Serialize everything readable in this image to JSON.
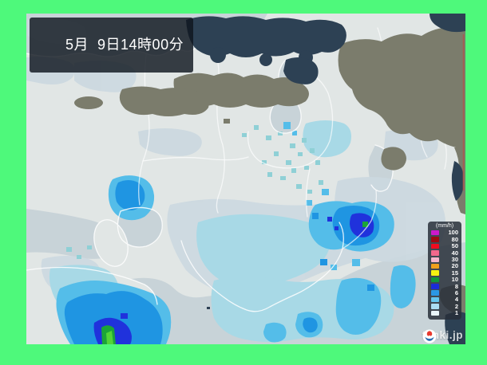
{
  "header": {
    "timestamp": "5月  9日14時00分"
  },
  "legend": {
    "title": "(mm/h)",
    "rows": [
      {
        "value": "100",
        "color": "#cc19cc"
      },
      {
        "value": "80",
        "color": "#9e0a10"
      },
      {
        "value": "50",
        "color": "#ef0c1f"
      },
      {
        "value": "40",
        "color": "#f2688c"
      },
      {
        "value": "30",
        "color": "#f6b7cd"
      },
      {
        "value": "20",
        "color": "#f0a01d"
      },
      {
        "value": "15",
        "color": "#f5f112"
      },
      {
        "value": "10",
        "color": "#12963c"
      },
      {
        "value": "8",
        "color": "#1b2cd8"
      },
      {
        "value": "6",
        "color": "#2a97e5"
      },
      {
        "value": "4",
        "color": "#64c5ee"
      },
      {
        "value": "2",
        "color": "#abdcf2"
      },
      {
        "value": "1",
        "color": "#e9f5f9"
      }
    ]
  },
  "watermark": {
    "text": "tenki.jp"
  },
  "colors": {
    "frame": "#4ef97b",
    "land": "#e1e6e5",
    "sea": "#c8d3d8",
    "cloud_light": "#7b7c6c",
    "cloud_dark": "#2d4154",
    "rain_light": "#a8d9e6",
    "rain_medium": "#54bde9",
    "rain_strong": "#1f95e2",
    "rain_intense": "#2032dc",
    "rain_peak": "#1ba538"
  }
}
